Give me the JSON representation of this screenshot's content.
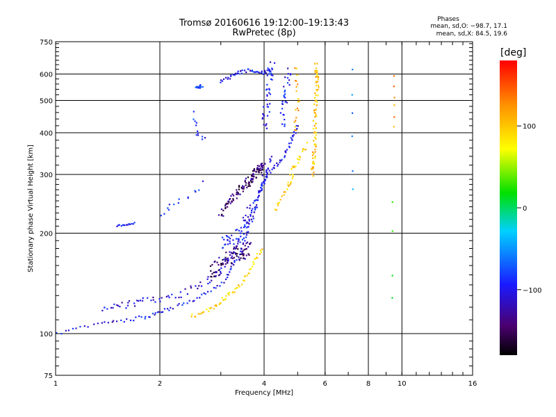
{
  "chart_data": {
    "type": "scatter",
    "title": "Tromsø 20160616 19:12:00–19:13:43",
    "subtitle": "RwPretec (8p)",
    "xlabel": "Frequency [MHz]",
    "ylabel": "Stationary phase Virtual Height [km]",
    "x_scale": "log",
    "y_scale": "log",
    "xlim": [
      1,
      16
    ],
    "ylim": [
      75,
      750
    ],
    "x_ticks": [
      "1",
      "2",
      "4",
      "6",
      "8",
      "10",
      "16"
    ],
    "y_ticks": [
      "75",
      "100",
      "200",
      "300",
      "400",
      "500",
      "600",
      "750"
    ],
    "grid": true,
    "stats": {
      "heading": "Phases",
      "o_line": "mean, sd,O: −98.7, 17.1",
      "x_line": "mean, sd,X:  84.5, 19.6"
    },
    "colorbar": {
      "unit": "[deg]",
      "ticks": [
        "100",
        "0",
        "−100"
      ],
      "range": [
        -180,
        180
      ]
    },
    "traces": [
      {
        "segments": [
          [
            [
              1.0,
              100
            ],
            [
              1.4,
              108
            ],
            [
              1.8,
              112
            ],
            [
              2.1,
              118
            ],
            [
              2.6,
              128
            ],
            [
              3.1,
              145
            ],
            [
              3.4,
              175
            ],
            [
              3.7,
              220
            ],
            [
              3.9,
              270
            ],
            [
              4.1,
              300
            ],
            [
              4.5,
              330
            ],
            [
              4.8,
              380
            ],
            [
              5.0,
              420
            ]
          ]
        ],
        "phase": -110,
        "count": 150,
        "jitter": 0.025
      },
      {
        "segments": [
          [
            [
              1.35,
              118
            ],
            [
              1.6,
              122
            ],
            [
              1.9,
              126
            ],
            [
              2.3,
              132
            ],
            [
              2.8,
              145
            ],
            [
              3.1,
              165
            ],
            [
              3.5,
              200
            ],
            [
              3.8,
              250
            ],
            [
              4.0,
              290
            ],
            [
              4.2,
              340
            ]
          ]
        ],
        "phase": -115,
        "count": 110,
        "jitter": 0.05
      },
      {
        "segments": [
          [
            [
              3.0,
              230
            ],
            [
              3.3,
              260
            ],
            [
              3.6,
              285
            ],
            [
              3.8,
              305
            ],
            [
              4.0,
              320
            ]
          ]
        ],
        "phase": -150,
        "count": 110,
        "jitter": 0.055
      },
      {
        "segments": [
          [
            [
              2.8,
              150
            ],
            [
              3.1,
              165
            ],
            [
              3.4,
              175
            ],
            [
              3.6,
              180
            ]
          ]
        ],
        "phase": -145,
        "count": 90,
        "jitter": 0.11
      },
      {
        "segments": [
          [
            [
              3.0,
              185
            ],
            [
              3.4,
              200
            ],
            [
              3.7,
              240
            ]
          ]
        ],
        "phase": -105,
        "count": 50,
        "jitter": 0.1
      },
      {
        "segments": [
          [
            [
              1.5,
              210
            ],
            [
              1.7,
              215
            ]
          ]
        ],
        "phase": -110,
        "count": 14,
        "jitter": 0.01
      },
      {
        "segments": [
          [
            [
              2.0,
              230
            ],
            [
              2.15,
              240
            ],
            [
              2.45,
              260
            ],
            [
              2.7,
              285
            ]
          ]
        ],
        "phase": -100,
        "count": 14,
        "jitter": 0.05
      },
      {
        "segments": [
          [
            [
              2.55,
              545
            ],
            [
              2.65,
              555
            ]
          ]
        ],
        "phase": -90,
        "count": 14,
        "jitter": 0.02
      },
      {
        "segments": [
          [
            [
              2.5,
              460
            ],
            [
              2.55,
              400
            ],
            [
              2.7,
              380
            ]
          ]
        ],
        "phase": -95,
        "count": 12,
        "jitter": 0.04
      },
      {
        "segments": [
          [
            [
              3.0,
              570
            ],
            [
              3.3,
              600
            ],
            [
              3.6,
              615
            ],
            [
              3.9,
              605
            ],
            [
              4.2,
              610
            ]
          ]
        ],
        "phase": -110,
        "count": 50,
        "jitter": 0.025
      },
      {
        "segments": [
          [
            [
              4.0,
              400
            ],
            [
              4.1,
              520
            ],
            [
              4.2,
              650
            ]
          ]
        ],
        "phase": -105,
        "count": 40,
        "jitter": 0.08
      },
      {
        "segments": [
          [
            [
              4.5,
              420
            ],
            [
              4.6,
              520
            ],
            [
              4.7,
              610
            ]
          ]
        ],
        "phase": -105,
        "count": 30,
        "jitter": 0.07
      },
      {
        "segments": [
          [
            [
              2.45,
              112
            ],
            [
              2.8,
              118
            ],
            [
              3.1,
              128
            ],
            [
              3.4,
              140
            ],
            [
              3.7,
              160
            ],
            [
              3.95,
              180
            ]
          ]
        ],
        "phase": 90,
        "count": 60,
        "jitter": 0.03
      },
      {
        "segments": [
          [
            [
              4.3,
              230
            ],
            [
              4.6,
              270
            ],
            [
              4.8,
              300
            ],
            [
              5.0,
              330
            ],
            [
              5.3,
              370
            ]
          ]
        ],
        "phase": 95,
        "count": 40,
        "jitter": 0.04
      },
      {
        "segments": [
          [
            [
              5.5,
              300
            ],
            [
              5.6,
              360
            ],
            [
              5.6,
              450
            ],
            [
              5.7,
              560
            ],
            [
              5.65,
              640
            ]
          ]
        ],
        "phase": 100,
        "count": 80,
        "jitter": 0.035
      },
      {
        "segments": [
          [
            [
              4.9,
              400
            ],
            [
              5.0,
              500
            ],
            [
              4.95,
              640
            ]
          ]
        ],
        "phase": 110,
        "count": 20,
        "jitter": 0.04
      },
      {
        "segments": [
          [
            [
              7.2,
              670
            ],
            [
              7.2,
              230
            ]
          ]
        ],
        "phase": -60,
        "count": 6,
        "jitter": 0.01
      },
      {
        "segments": [
          [
            [
              9.5,
              600
            ],
            [
              9.5,
              400
            ]
          ]
        ],
        "phase": 120,
        "count": 6,
        "jitter": 0.01
      },
      {
        "segments": [
          [
            [
              9.4,
              250
            ],
            [
              9.4,
              110
            ]
          ]
        ],
        "phase": 5,
        "count": 4,
        "jitter": 0.01
      }
    ]
  }
}
